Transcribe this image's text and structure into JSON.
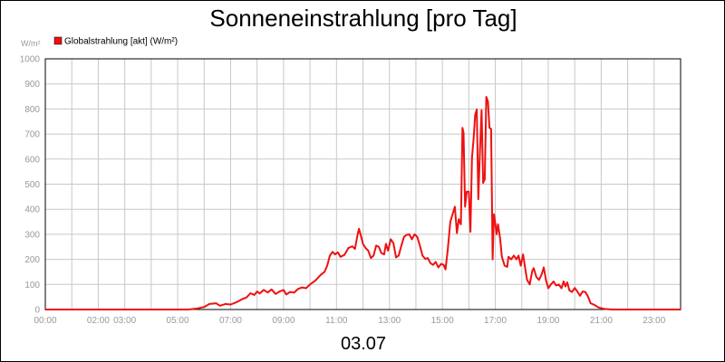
{
  "chart_data": {
    "type": "line",
    "title": "Sonneneinstrahlung [pro Tag]",
    "y_unit": "W/m²",
    "xlabel": "03.07",
    "ylim": [
      0,
      1000
    ],
    "y_ticks": [
      0,
      100,
      200,
      300,
      400,
      500,
      600,
      700,
      800,
      900,
      1000
    ],
    "xlim": [
      0,
      24
    ],
    "x_ticks": [
      {
        "x": 0,
        "label": "00:00"
      },
      {
        "x": 2,
        "label": "02:00"
      },
      {
        "x": 3,
        "label": "03:00"
      },
      {
        "x": 5,
        "label": "05:00"
      },
      {
        "x": 7,
        "label": "07:00"
      },
      {
        "x": 9,
        "label": "09:00"
      },
      {
        "x": 11,
        "label": "11:00"
      },
      {
        "x": 13,
        "label": "13:00"
      },
      {
        "x": 15,
        "label": "15:00"
      },
      {
        "x": 17,
        "label": "17:00"
      },
      {
        "x": 19,
        "label": "19:00"
      },
      {
        "x": 21,
        "label": "21:00"
      },
      {
        "x": 23,
        "label": "23:00"
      }
    ],
    "grid": true,
    "legend_position": "top-left",
    "series": [
      {
        "name": "Globalstrahlung [akt] (W/m²)",
        "color": "#ee1111",
        "points": [
          [
            0,
            0
          ],
          [
            5.4,
            0
          ],
          [
            5.75,
            4
          ],
          [
            6.0,
            10
          ],
          [
            6.2,
            22
          ],
          [
            6.45,
            25
          ],
          [
            6.6,
            15
          ],
          [
            6.8,
            22
          ],
          [
            7.0,
            20
          ],
          [
            7.2,
            28
          ],
          [
            7.45,
            42
          ],
          [
            7.6,
            48
          ],
          [
            7.75,
            65
          ],
          [
            7.9,
            58
          ],
          [
            8.0,
            72
          ],
          [
            8.1,
            64
          ],
          [
            8.25,
            78
          ],
          [
            8.4,
            68
          ],
          [
            8.55,
            80
          ],
          [
            8.7,
            62
          ],
          [
            8.85,
            72
          ],
          [
            9.0,
            78
          ],
          [
            9.1,
            60
          ],
          [
            9.25,
            70
          ],
          [
            9.4,
            68
          ],
          [
            9.55,
            82
          ],
          [
            9.7,
            88
          ],
          [
            9.85,
            85
          ],
          [
            10.0,
            100
          ],
          [
            10.2,
            115
          ],
          [
            10.4,
            138
          ],
          [
            10.55,
            150
          ],
          [
            10.65,
            175
          ],
          [
            10.75,
            215
          ],
          [
            10.85,
            230
          ],
          [
            10.95,
            220
          ],
          [
            11.05,
            228
          ],
          [
            11.15,
            210
          ],
          [
            11.3,
            218
          ],
          [
            11.45,
            245
          ],
          [
            11.6,
            252
          ],
          [
            11.7,
            242
          ],
          [
            11.78,
            290
          ],
          [
            11.85,
            322
          ],
          [
            11.92,
            295
          ],
          [
            12.0,
            262
          ],
          [
            12.1,
            245
          ],
          [
            12.2,
            235
          ],
          [
            12.3,
            205
          ],
          [
            12.4,
            215
          ],
          [
            12.5,
            255
          ],
          [
            12.6,
            250
          ],
          [
            12.7,
            225
          ],
          [
            12.8,
            220
          ],
          [
            12.87,
            262
          ],
          [
            12.95,
            235
          ],
          [
            13.05,
            280
          ],
          [
            13.15,
            265
          ],
          [
            13.25,
            208
          ],
          [
            13.35,
            215
          ],
          [
            13.45,
            255
          ],
          [
            13.55,
            290
          ],
          [
            13.65,
            298
          ],
          [
            13.75,
            300
          ],
          [
            13.85,
            280
          ],
          [
            13.95,
            300
          ],
          [
            14.05,
            290
          ],
          [
            14.15,
            255
          ],
          [
            14.25,
            215
          ],
          [
            14.35,
            202
          ],
          [
            14.45,
            205
          ],
          [
            14.55,
            185
          ],
          [
            14.65,
            178
          ],
          [
            14.75,
            190
          ],
          [
            14.85,
            168
          ],
          [
            14.95,
            182
          ],
          [
            15.05,
            178
          ],
          [
            15.12,
            160
          ],
          [
            15.2,
            235
          ],
          [
            15.3,
            350
          ],
          [
            15.4,
            385
          ],
          [
            15.47,
            410
          ],
          [
            15.55,
            305
          ],
          [
            15.62,
            360
          ],
          [
            15.7,
            340
          ],
          [
            15.76,
            725
          ],
          [
            15.8,
            705
          ],
          [
            15.86,
            410
          ],
          [
            15.92,
            470
          ],
          [
            16.0,
            470
          ],
          [
            16.06,
            310
          ],
          [
            16.12,
            605
          ],
          [
            16.18,
            680
          ],
          [
            16.24,
            775
          ],
          [
            16.3,
            798
          ],
          [
            16.36,
            440
          ],
          [
            16.42,
            630
          ],
          [
            16.48,
            795
          ],
          [
            16.54,
            505
          ],
          [
            16.6,
            520
          ],
          [
            16.66,
            848
          ],
          [
            16.72,
            830
          ],
          [
            16.78,
            725
          ],
          [
            16.84,
            720
          ],
          [
            16.9,
            200
          ],
          [
            16.95,
            380
          ],
          [
            17.0,
            345
          ],
          [
            17.05,
            300
          ],
          [
            17.1,
            340
          ],
          [
            17.18,
            285
          ],
          [
            17.25,
            210
          ],
          [
            17.35,
            175
          ],
          [
            17.45,
            170
          ],
          [
            17.5,
            210
          ],
          [
            17.6,
            200
          ],
          [
            17.7,
            215
          ],
          [
            17.8,
            200
          ],
          [
            17.88,
            215
          ],
          [
            17.96,
            175
          ],
          [
            18.05,
            220
          ],
          [
            18.15,
            150
          ],
          [
            18.2,
            118
          ],
          [
            18.3,
            100
          ],
          [
            18.4,
            155
          ],
          [
            18.45,
            165
          ],
          [
            18.55,
            130
          ],
          [
            18.65,
            118
          ],
          [
            18.75,
            140
          ],
          [
            18.83,
            168
          ],
          [
            18.92,
            115
          ],
          [
            19.0,
            85
          ],
          [
            19.1,
            100
          ],
          [
            19.2,
            112
          ],
          [
            19.3,
            96
          ],
          [
            19.4,
            100
          ],
          [
            19.5,
            85
          ],
          [
            19.58,
            112
          ],
          [
            19.65,
            92
          ],
          [
            19.72,
            108
          ],
          [
            19.8,
            76
          ],
          [
            19.9,
            70
          ],
          [
            20.0,
            86
          ],
          [
            20.1,
            72
          ],
          [
            20.2,
            55
          ],
          [
            20.3,
            72
          ],
          [
            20.4,
            70
          ],
          [
            20.5,
            52
          ],
          [
            20.6,
            25
          ],
          [
            20.75,
            18
          ],
          [
            20.9,
            8
          ],
          [
            21.1,
            3
          ],
          [
            21.4,
            0
          ],
          [
            24,
            0
          ]
        ]
      }
    ]
  }
}
